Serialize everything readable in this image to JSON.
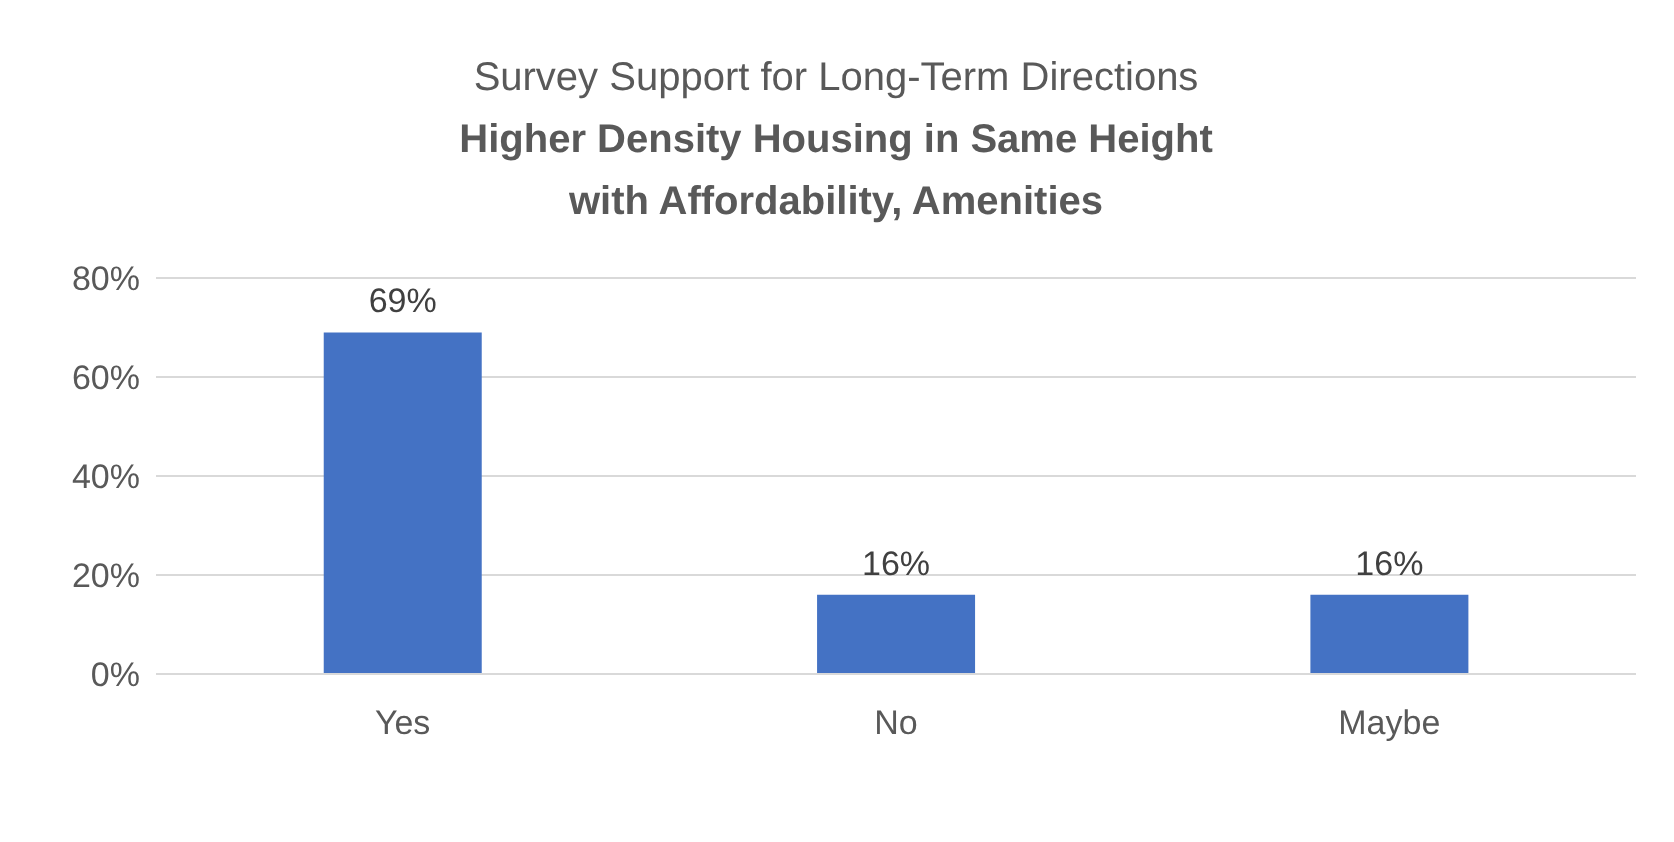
{
  "chart_data": {
    "type": "bar",
    "title": "Survey Support for Long-Term Directions",
    "subtitle": "Higher Density Housing in Same Height with Affordability, Amenities",
    "categories": [
      "Yes",
      "No",
      "Maybe"
    ],
    "values": [
      69,
      16,
      16
    ],
    "value_labels": [
      "69%",
      "16%",
      "16%"
    ],
    "color": "#4472c4",
    "ylim": [
      0,
      80
    ],
    "yticks": [
      {
        "value": 0,
        "label": "0%"
      },
      {
        "value": 20,
        "label": "20%"
      },
      {
        "value": 40,
        "label": "40%"
      },
      {
        "value": 60,
        "label": "60%"
      },
      {
        "value": 80,
        "label": "80%"
      }
    ],
    "grid": "y"
  }
}
